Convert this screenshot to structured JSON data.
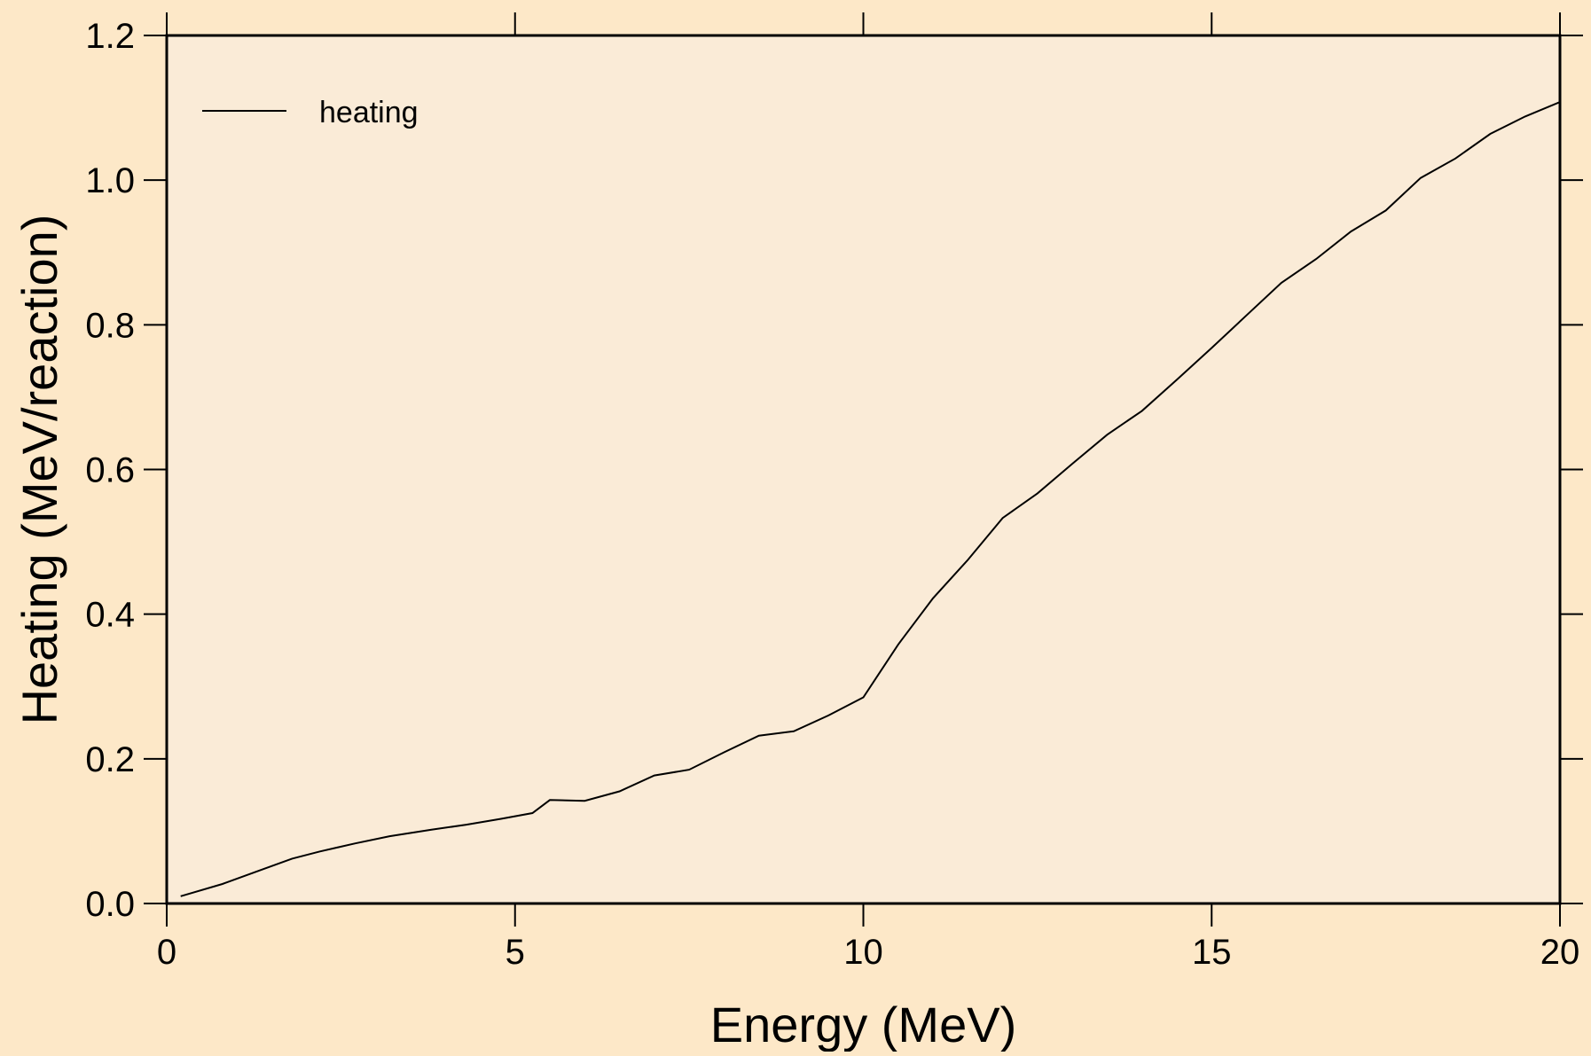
{
  "colors": {
    "page_background": "#fde8c8",
    "plot_background": "#faebd7",
    "line": "#000000"
  },
  "chart_data": {
    "type": "line",
    "xlabel": "Energy (MeV)",
    "ylabel": "Heating (MeV/reaction)",
    "xlim": [
      0,
      20
    ],
    "ylim": [
      0,
      1.2
    ],
    "x_ticks": [
      0,
      5,
      10,
      15,
      20
    ],
    "x_tick_labels": [
      "0",
      "5",
      "10",
      "15",
      "20"
    ],
    "y_ticks": [
      0,
      0.2,
      0.4,
      0.6,
      0.8,
      1.0,
      1.2
    ],
    "y_tick_labels": [
      "0.0",
      "0.2",
      "0.4",
      "0.6",
      "0.8",
      "1.0",
      "1.2"
    ],
    "grid": false,
    "legend_position": "top-left",
    "series": [
      {
        "name": "heating",
        "x": [
          0.2,
          0.8,
          1.4,
          1.8,
          2.2,
          2.7,
          3.2,
          3.8,
          4.3,
          4.8,
          5.25,
          5.5,
          6.0,
          6.5,
          7.0,
          7.5,
          8.0,
          8.5,
          9.0,
          9.5,
          10.0,
          10.5,
          11.0,
          11.5,
          12.0,
          12.5,
          13.0,
          13.5,
          14.0,
          14.5,
          15.0,
          15.5,
          16.0,
          16.5,
          17.0,
          17.5,
          18.0,
          18.5,
          19.0,
          19.5,
          20.0
        ],
        "y": [
          0.01,
          0.027,
          0.048,
          0.062,
          0.072,
          0.083,
          0.093,
          0.102,
          0.109,
          0.117,
          0.125,
          0.143,
          0.142,
          0.155,
          0.177,
          0.185,
          0.209,
          0.232,
          0.238,
          0.26,
          0.285,
          0.358,
          0.422,
          0.475,
          0.533,
          0.567,
          0.608,
          0.648,
          0.681,
          0.724,
          0.768,
          0.813,
          0.858,
          0.891,
          0.929,
          0.958,
          1.003,
          1.03,
          1.064,
          1.088,
          1.108
        ]
      }
    ]
  }
}
